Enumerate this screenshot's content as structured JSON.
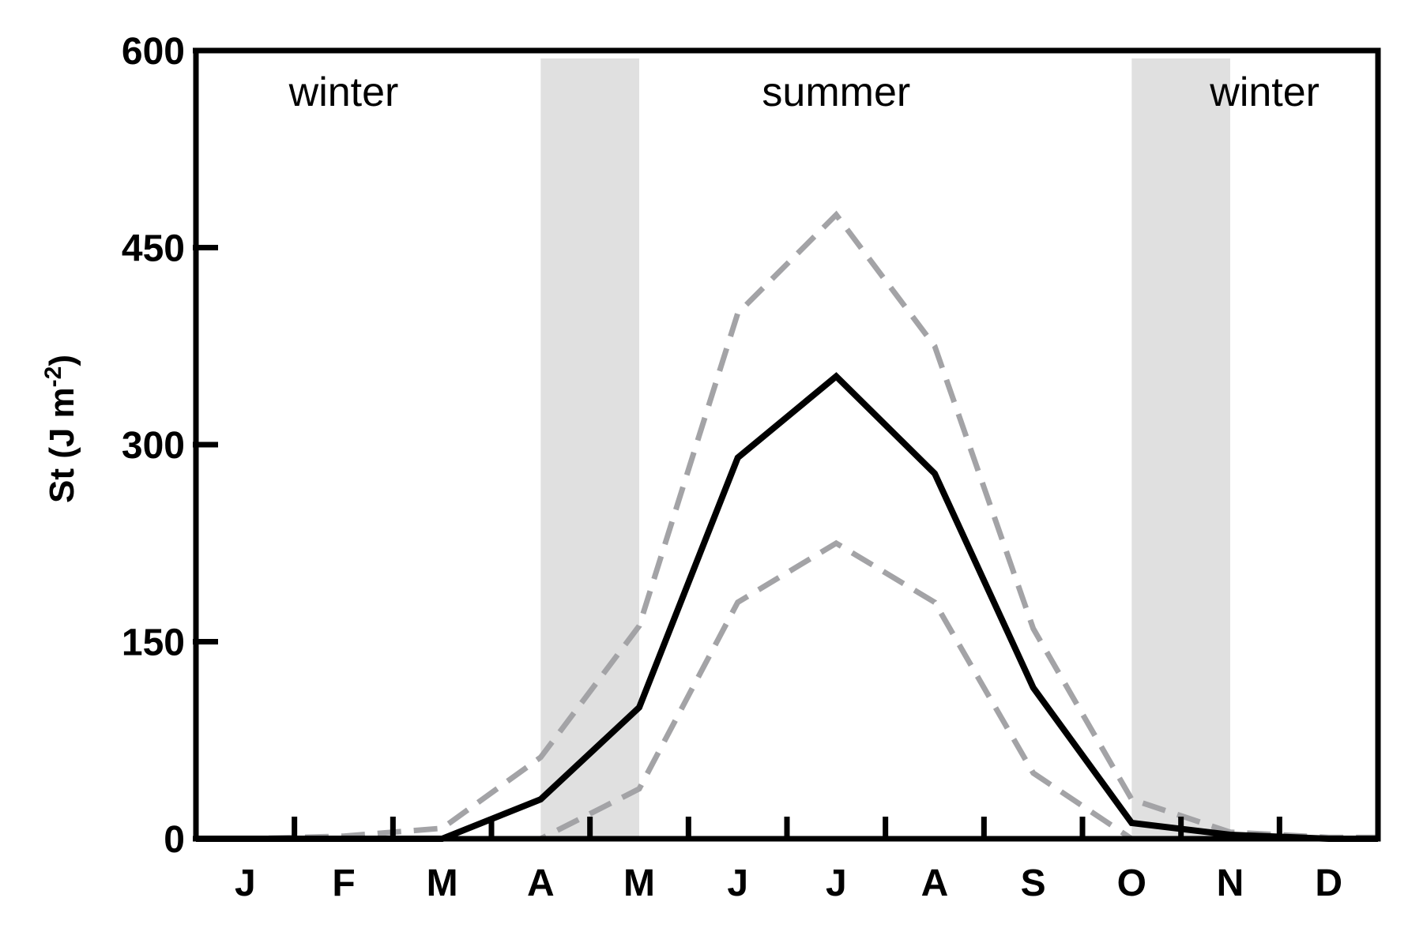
{
  "chart_data": {
    "type": "line",
    "title": "",
    "xlabel": "",
    "ylabel": "St (J m-2)",
    "ylabel_parts": {
      "main": "St (J m",
      "superscript": "-2",
      "close": ")"
    },
    "ylim": [
      0,
      600
    ],
    "yticks": [
      "0",
      "150",
      "300",
      "450",
      "600"
    ],
    "ytick_values": [
      0,
      150,
      300,
      450,
      600
    ],
    "categories": [
      "J",
      "F",
      "M",
      "A",
      "M",
      "J",
      "J",
      "A",
      "S",
      "O",
      "N",
      "D"
    ],
    "x": [
      1,
      2,
      3,
      4,
      5,
      6,
      7,
      8,
      9,
      10,
      11,
      12
    ],
    "series": [
      {
        "style": "solid",
        "color": "#000000",
        "values": [
          0,
          0,
          0,
          30,
          100,
          290,
          352,
          278,
          115,
          12,
          3,
          0
        ]
      },
      {
        "style": "dashed",
        "color": "#a3a3a6",
        "values": [
          0,
          2,
          8,
          62,
          162,
          400,
          475,
          375,
          160,
          30,
          5,
          1
        ]
      },
      {
        "style": "dashed",
        "color": "#a3a3a6",
        "values": [
          0,
          0,
          0,
          0,
          38,
          180,
          225,
          180,
          50,
          0,
          0,
          0
        ]
      }
    ],
    "shaded_bands": [
      {
        "x_from": 3.5,
        "x_to": 4.5,
        "color": "#e0e0e0"
      },
      {
        "x_from": 9.5,
        "x_to": 10.5,
        "color": "#e0e0e0"
      }
    ],
    "season_labels": [
      {
        "text": "winter",
        "x": 2.0
      },
      {
        "text": "summer",
        "x": 7.0
      },
      {
        "text": "winter",
        "x": 11.35
      }
    ],
    "grid": false,
    "legend": "none"
  }
}
